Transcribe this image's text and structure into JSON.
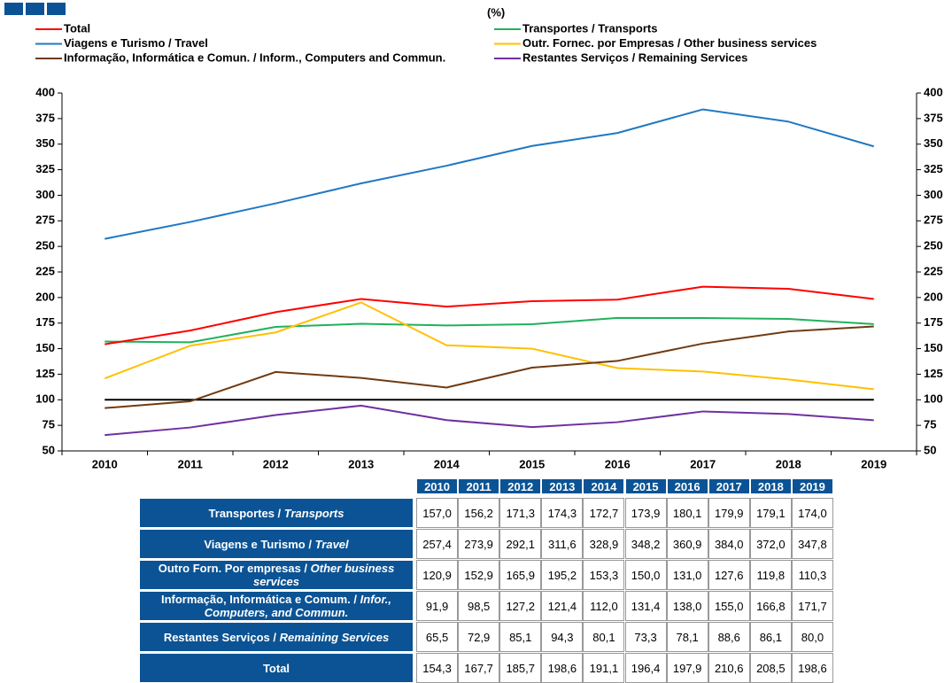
{
  "chart_data": {
    "type": "line",
    "title": "(%)",
    "categories": [
      "2010",
      "2011",
      "2012",
      "2013",
      "2014",
      "2015",
      "2016",
      "2017",
      "2018",
      "2019"
    ],
    "ylim": [
      50,
      400
    ],
    "yticks": [
      50,
      75,
      100,
      125,
      150,
      175,
      200,
      225,
      250,
      275,
      300,
      325,
      350,
      375,
      400
    ],
    "y2lim": [
      50,
      400
    ],
    "y2ticks": [
      50,
      75,
      100,
      125,
      150,
      175,
      200,
      225,
      250,
      275,
      300,
      325,
      350,
      375,
      400
    ],
    "reference_line": {
      "value": 100,
      "color": "#000000"
    },
    "series": [
      {
        "name": "Transportes / Transports",
        "color": "#21b15c",
        "values": [
          157.0,
          156.2,
          171.3,
          174.3,
          172.7,
          173.9,
          180.1,
          179.9,
          179.1,
          174.0
        ],
        "value_labels": [
          "157,0",
          "156,2",
          "171,3",
          "174,3",
          "172,7",
          "173,9",
          "180,1",
          "179,9",
          "179,1",
          "174,0"
        ]
      },
      {
        "name": "Viagens e Turismo / Travel",
        "color": "#1f78c4",
        "values": [
          257.4,
          273.9,
          292.1,
          311.6,
          328.9,
          348.2,
          360.9,
          384.0,
          372.0,
          347.8
        ],
        "value_labels": [
          "257,4",
          "273,9",
          "292,1",
          "311,6",
          "328,9",
          "348,2",
          "360,9",
          "384,0",
          "372,0",
          "347,8"
        ]
      },
      {
        "name": "Outr. Fornec. por Empresas  / Other business services",
        "color": "#ffc000",
        "values": [
          120.9,
          152.9,
          165.9,
          195.2,
          153.3,
          150.0,
          131.0,
          127.6,
          119.8,
          110.3
        ],
        "value_labels": [
          "120,9",
          "152,9",
          "165,9",
          "195,2",
          "153,3",
          "150,0",
          "131,0",
          "127,6",
          "119,8",
          "110,3"
        ]
      },
      {
        "name": "Informação, Informática e Comun. /  Inform., Computers and Commun.",
        "color": "#6f3b12",
        "values": [
          91.9,
          98.5,
          127.2,
          121.4,
          112.0,
          131.4,
          138.0,
          155.0,
          166.8,
          171.7
        ],
        "value_labels": [
          "91,9",
          "98,5",
          "127,2",
          "121,4",
          "112,0",
          "131,4",
          "138,0",
          "155,0",
          "166,8",
          "171,7"
        ]
      },
      {
        "name": "Restantes Serviços / Remaining Services",
        "color": "#7030a0",
        "values": [
          65.5,
          72.9,
          85.1,
          94.3,
          80.1,
          73.3,
          78.1,
          88.6,
          86.1,
          80.0
        ],
        "value_labels": [
          "65,5",
          "72,9",
          "85,1",
          "94,3",
          "80,1",
          "73,3",
          "78,1",
          "88,6",
          "86,1",
          "80,0"
        ]
      },
      {
        "name": "Total",
        "color": "#ff0000",
        "values": [
          154.3,
          167.7,
          185.7,
          198.6,
          191.1,
          196.4,
          197.9,
          210.6,
          208.5,
          198.6
        ],
        "value_labels": [
          "154,3",
          "167,7",
          "185,7",
          "198,6",
          "191,1",
          "196,4",
          "197,9",
          "210,6",
          "208,5",
          "198,6"
        ]
      }
    ],
    "table_rows": [
      {
        "pt": "Transportes /",
        "en": "Transports"
      },
      {
        "pt": "Viagens e Turismo /",
        "en": "Travel"
      },
      {
        "pt": "Outro Forn. Por empresas /",
        "en": "Other business services"
      },
      {
        "pt": "Informação, Informática e Comum. /",
        "en": "Infor., Computers, and Commun."
      },
      {
        "pt": "Restantes Serviços /",
        "en": "Remaining Services"
      },
      {
        "pt": "Total"
      }
    ]
  }
}
